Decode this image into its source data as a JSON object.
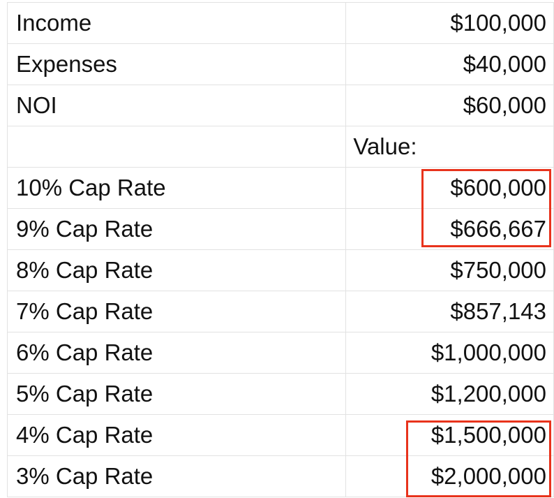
{
  "table": {
    "rows": [
      {
        "label": "Income",
        "value": "$100,000"
      },
      {
        "label": "Expenses",
        "value": "$40,000"
      },
      {
        "label": "NOI",
        "value": "$60,000"
      },
      {
        "label": "",
        "value": "Value:"
      },
      {
        "label": "10% Cap Rate",
        "value": "$600,000"
      },
      {
        "label": "9% Cap Rate",
        "value": "$666,667"
      },
      {
        "label": "8% Cap Rate",
        "value": "$750,000"
      },
      {
        "label": "7% Cap Rate",
        "value": "$857,143"
      },
      {
        "label": "6% Cap Rate",
        "value": "$1,000,000"
      },
      {
        "label": "5% Cap Rate",
        "value": "$1,200,000"
      },
      {
        "label": "4% Cap Rate",
        "value": "$1,500,000"
      },
      {
        "label": "3% Cap Rate",
        "value": "$2,000,000"
      }
    ]
  },
  "colors": {
    "highlight": "#e8331c",
    "gridline": "#e2e2e2",
    "text": "#111111"
  }
}
